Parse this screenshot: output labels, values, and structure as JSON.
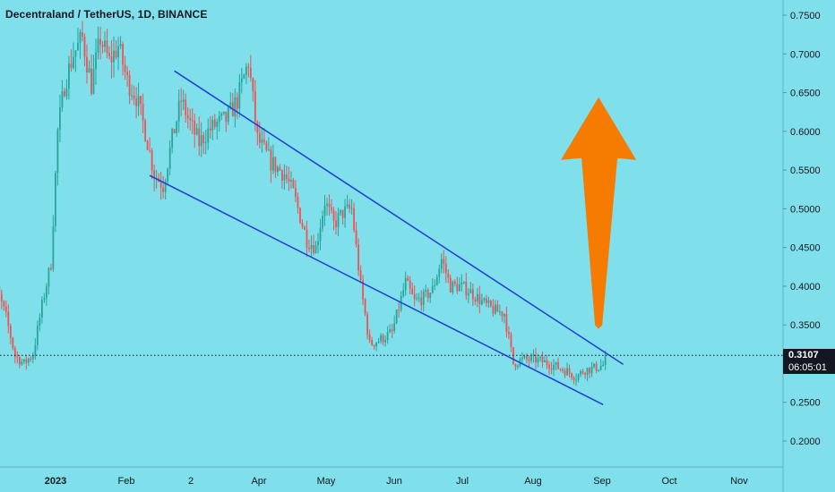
{
  "chart_data": {
    "type": "candlestick",
    "title": "Decentraland / TetherUS, 1D, BINANCE",
    "y_ticks": [
      "0.7500",
      "0.7000",
      "0.6500",
      "0.6000",
      "0.5500",
      "0.5000",
      "0.4500",
      "0.4000",
      "0.3500",
      "0.2500",
      "0.2000"
    ],
    "x_ticks": [
      "2023",
      "Feb",
      "2",
      "Apr",
      "May",
      "Jun",
      "Jul",
      "Aug",
      "Sep",
      "Oct",
      "Nov"
    ],
    "ylim": [
      0.18,
      0.77
    ],
    "current_price": "0.3107",
    "countdown": "06:05:01",
    "up_color": "#26a69a",
    "down_color": "#ef5350",
    "channel_color": "#1e3fd6",
    "arrow_color": "#f57c00",
    "channel_upper": [
      {
        "x": "2023-03-17",
        "y": 0.678
      },
      {
        "x": "2023-10-03",
        "y": 0.299
      }
    ],
    "channel_lower": [
      {
        "x": "2023-03-06",
        "y": 0.543
      },
      {
        "x": "2023-09-24",
        "y": 0.247
      }
    ],
    "arrow": {
      "from": {
        "x": "2023-09-22",
        "y": 0.345
      },
      "to": {
        "x": "2023-09-22",
        "y": 0.644
      }
    },
    "candle_count": 276,
    "candles_start": "2022-12-24"
  }
}
